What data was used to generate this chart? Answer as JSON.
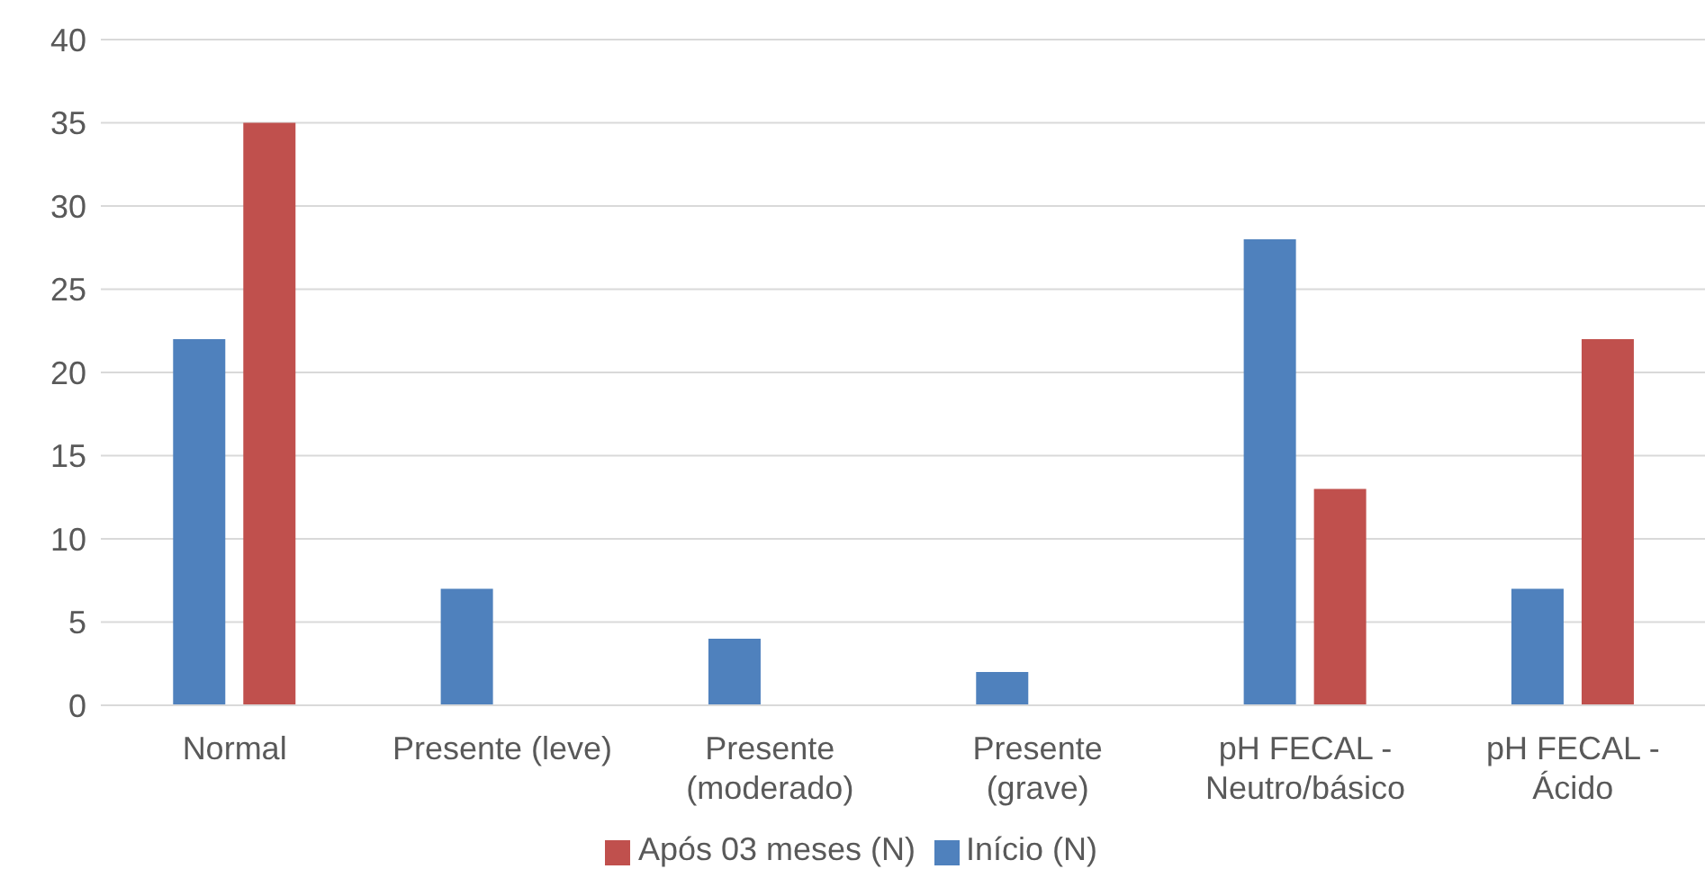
{
  "chart_data": {
    "type": "bar",
    "categories": [
      "Normal",
      "Presente (leve)",
      "Presente (moderado)",
      "Presente (grave)",
      "pH FECAL - Neutro/básico",
      "pH FECAL - Ácido"
    ],
    "series": [
      {
        "name": "Início (N)",
        "color": "#4f81bd",
        "values": [
          22,
          7,
          4,
          2,
          28,
          7
        ]
      },
      {
        "name": "Após 03 meses (N)",
        "color": "#c0504d",
        "values": [
          35,
          0,
          0,
          0,
          13,
          22
        ]
      }
    ],
    "ylim": [
      0,
      40
    ],
    "yticks": [
      0,
      5,
      10,
      15,
      20,
      25,
      30,
      35,
      40
    ],
    "grid": "y",
    "legend": "bottom"
  }
}
